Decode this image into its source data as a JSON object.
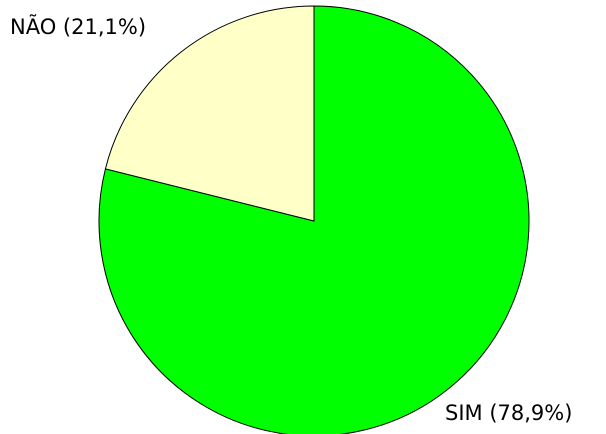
{
  "chart_data": {
    "type": "pie",
    "values": [
      78.9,
      21.1
    ],
    "value_labels": [
      "SIM (78,9%)",
      "NÃO (21,1%)"
    ],
    "colors": [
      "#00ff00",
      "#ffffc8"
    ]
  }
}
